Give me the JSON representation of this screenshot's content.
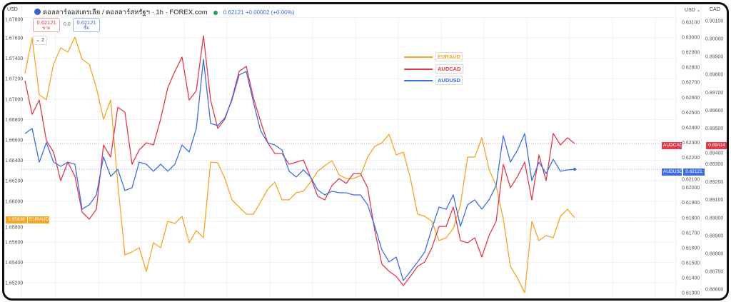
{
  "header": {
    "currency_left": "USD",
    "title": "ดอลลาร์ออสเตรเลีย / ดอลลาร์สหรัฐฯ · 1h · FOREX.com",
    "last_price": "0.62121",
    "change": "+0.00002 (+0.00%)",
    "status_color": "#1aa35a"
  },
  "trade": {
    "sell_price": "0.62121",
    "sell_label": "ขาย",
    "spread": "0.0",
    "buy_price": "0.62121",
    "buy_label": "ซื้อ"
  },
  "collapse_label": "⌄ 2",
  "axes_header": {
    "usd": "USD ⌄",
    "cad": "CAD"
  },
  "legend": [
    {
      "name": "EURAUD",
      "color": "#f5a623"
    },
    {
      "name": "AUDCAD",
      "color": "#e03a4b"
    },
    {
      "name": "AUDUSD",
      "color": "#3d6ee0"
    }
  ],
  "price_tags": {
    "euraud": {
      "symbol": "EURAUD",
      "value": "1.65838",
      "color": "#f5a623"
    },
    "audcad": {
      "symbol": "AUDCAD",
      "value": "0.89414",
      "color": "#e03a4b"
    },
    "audusd": {
      "symbol": "AUDUSD",
      "value": "0.62121",
      "color": "#3d6ee0"
    }
  },
  "chart_data": {
    "type": "line",
    "grid": true,
    "legend_position": "top-center",
    "axes": {
      "left": {
        "label": "",
        "range": [
          1.651,
          1.678
        ],
        "ticks": [
          "1.67800",
          "1.67600",
          "1.67400",
          "1.67200",
          "1.67000",
          "1.66800",
          "1.66600",
          "1.66400",
          "1.66200",
          "1.66000",
          "1.65800",
          "1.65600",
          "1.65400",
          "1.65200"
        ]
      },
      "usd": {
        "label": "USD",
        "range": [
          0.613,
          0.631
        ],
        "ticks": [
          "0.63100",
          "0.63000",
          "0.62900",
          "0.62800",
          "0.62700",
          "0.62600",
          "0.62500",
          "0.62400",
          "0.62300",
          "0.62200",
          "0.62100",
          "0.62000",
          "0.61900",
          "0.61800",
          "0.61700",
          "0.61600",
          "0.61500",
          "0.61400",
          "0.61300"
        ]
      },
      "cad": {
        "label": "CAD",
        "range": [
          0.886,
          0.901
        ],
        "ticks": [
          "0.90100",
          "0.90000",
          "0.89900",
          "0.89800",
          "0.89700",
          "0.89600",
          "0.89500",
          "0.89400",
          "0.89300",
          "0.89200",
          "0.89100",
          "0.89000",
          "0.88900",
          "0.88800",
          "0.88700",
          "0.88600"
        ]
      }
    },
    "series": [
      {
        "name": "EURAUD",
        "axis": "left",
        "color": "#f5a623",
        "values": [
          1.6725,
          1.676,
          1.67041,
          1.66992,
          1.67341,
          1.67502,
          1.6746,
          1.67607,
          1.6739,
          1.67341,
          1.67111,
          1.66803,
          1.66992,
          1.66173,
          1.65474,
          1.65502,
          1.65544,
          1.65313,
          1.65593,
          1.65544,
          1.65803,
          1.65782,
          1.65852,
          1.65593,
          1.65712,
          1.65642,
          1.66383,
          1.66376,
          1.66222,
          1.66013,
          1.65943,
          1.65873,
          1.65873,
          1.65992,
          1.66117,
          1.66187,
          1.66013,
          1.66013,
          1.66083,
          1.66097,
          1.66187,
          1.66292,
          1.66348,
          1.66397,
          1.66257,
          1.66222,
          1.66222,
          1.6625,
          1.66432,
          1.66537,
          1.66572,
          1.66656,
          1.66453,
          1.66481,
          1.66222,
          1.65873,
          1.65852,
          1.65803,
          1.65614,
          1.65642,
          1.65733,
          1.65964,
          1.66432,
          1.66432,
          1.66621,
          1.66313,
          1.66152,
          1.65824,
          1.65362,
          1.65243,
          1.65103,
          1.65803,
          1.65614,
          1.65663,
          1.65642,
          1.65852,
          1.65922,
          1.65838
        ]
      },
      {
        "name": "AUDCAD",
        "axis": "cad",
        "color": "#e03a4b",
        "values": [
          0.89765,
          0.89577,
          0.89657,
          0.8943,
          0.89366,
          0.89206,
          0.8931,
          0.8923,
          0.89031,
          0.88991,
          0.89047,
          0.89406,
          0.89338,
          0.89617,
          0.89589,
          0.89298,
          0.89378,
          0.89418,
          0.89406,
          0.8955,
          0.89725,
          0.89817,
          0.89897,
          0.89657,
          0.89709,
          0.90016,
          0.89657,
          0.89498,
          0.8955,
          0.89665,
          0.89817,
          0.89845,
          0.89669,
          0.89538,
          0.89418,
          0.89358,
          0.89358,
          0.89298,
          0.8931,
          0.89322,
          0.89226,
          0.89119,
          0.89099,
          0.89179,
          0.89218,
          0.89191,
          0.89246,
          0.89246,
          0.89167,
          0.88927,
          0.8874,
          0.887,
          0.88672,
          0.8862,
          0.88672,
          0.88728,
          0.88752,
          0.88831,
          0.88951,
          0.88951,
          0.89059,
          0.88871,
          0.88859,
          0.88887,
          0.8878,
          0.88899,
          0.88979,
          0.89298,
          0.89167,
          0.8923,
          0.8931,
          0.89099,
          0.8935,
          0.89206,
          0.8947,
          0.89406,
          0.89446,
          0.89414
        ]
      },
      {
        "name": "AUDUSD",
        "axis": "usd",
        "color": "#3d6ee0",
        "values": [
          0.62359,
          0.62393,
          0.62169,
          0.62298,
          0.62169,
          0.62141,
          0.62169,
          0.62155,
          0.61856,
          0.61885,
          0.61951,
          0.62203,
          0.62074,
          0.62122,
          0.6198,
          0.61999,
          0.62169,
          0.62155,
          0.62108,
          0.62155,
          0.62108,
          0.62155,
          0.62283,
          0.62236,
          0.62393,
          0.62853,
          0.62426,
          0.62412,
          0.62464,
          0.62582,
          0.62749,
          0.62772,
          0.62568,
          0.62378,
          0.62298,
          0.62283,
          0.6225,
          0.62108,
          0.6207,
          0.62117,
          0.6207,
          0.61984,
          0.61951,
          0.61975,
          0.61965,
          0.61965,
          0.61951,
          0.61951,
          0.61885,
          0.61742,
          0.61585,
          0.61505,
          0.61538,
          0.61381,
          0.61443,
          0.61505,
          0.61571,
          0.61728,
          0.6187,
          0.61856,
          0.61951,
          0.61742,
          0.61885,
          0.61918,
          0.61856,
          0.61918,
          0.62013,
          0.62345,
          0.62169,
          0.6225,
          0.62359,
          0.62046,
          0.62169,
          0.62093,
          0.62188,
          0.62108,
          0.62117,
          0.62121
        ]
      }
    ]
  }
}
